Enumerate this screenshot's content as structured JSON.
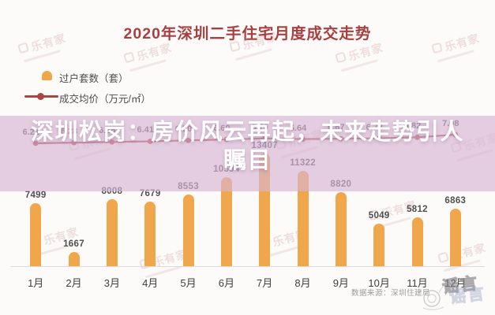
{
  "title": "2020年深圳二手住宅月度成交走势",
  "legend": {
    "bar_label": "过户套数（套）",
    "line_label": "成交均价（万元/㎡）"
  },
  "headline": {
    "lines": [
      "深圳松岗：房价风云再起，未来走势引人",
      "瞩目"
    ]
  },
  "source": "数据来源：深圳住建局",
  "watermark": {
    "brand": "乐有家",
    "stamp": "谣言"
  },
  "colors": {
    "bar": "#f0a64a",
    "line": "#ac4441",
    "title_red": "#a84040",
    "overlay_mauve": "rgba(215,180,212,0.66)"
  },
  "chart_data": {
    "type": "bar",
    "subtype": "bar+line combo",
    "title": "2020年深圳二手住宅月度成交走势",
    "categories": [
      "1月",
      "2月",
      "3月",
      "4月",
      "5月",
      "6月",
      "7月",
      "8月",
      "9月",
      "10月",
      "11月",
      "12月"
    ],
    "series": [
      {
        "name": "过户套数（套）",
        "type": "bar",
        "values": [
          7499,
          1667,
          8008,
          7679,
          8553,
          10594,
          13407,
          11322,
          8820,
          5049,
          5812,
          6863
        ]
      },
      {
        "name": "成交均价（万元/㎡）",
        "type": "line",
        "values": [
          6.21,
          6.28,
          6.35,
          6.41,
          6.5,
          6.6,
          6.7,
          6.64,
          6.67,
          6.72,
          6.82,
          7.08
        ]
      }
    ],
    "xlabel": "",
    "ylabel": "",
    "bar_axis_range": [
      0,
      14000
    ],
    "line_axis_range": [
      6.0,
      7.2
    ],
    "grid": false,
    "legend_position": "top-left",
    "data_labels": true
  }
}
